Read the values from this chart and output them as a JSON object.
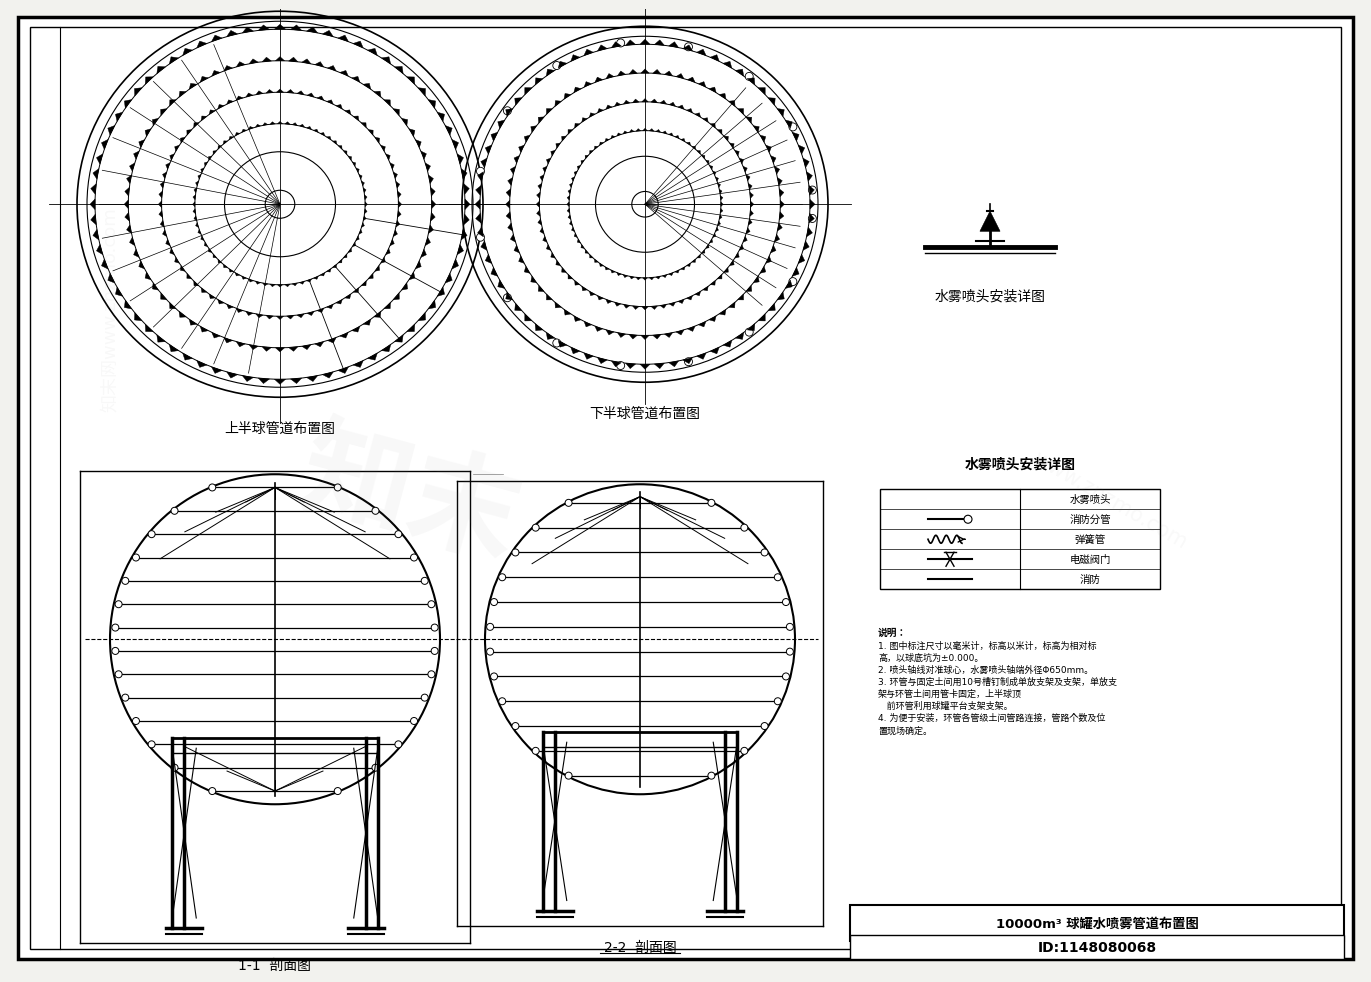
{
  "bg_color": "#f2f2ee",
  "white": "#ffffff",
  "black": "#000000",
  "label_upper": "上半球管道布置图",
  "label_lower": "下半球管道布置图",
  "label_section1": "1-1  剖面图",
  "label_section2": "2-2  剖面图",
  "label_nozzle": "水雾喷头安装详图",
  "legend_title": "水雾喷头安装详图",
  "legend_rows": [
    "水雾喷头",
    "消防分管",
    "弹簧管",
    "电磁阀门",
    "消防"
  ],
  "notes_title": "说明：",
  "notes": [
    "1. 图中标注尺寸以毫米计，标高以米计，标高为相对标",
    "高，以球底坑为±0.000。",
    "2. 喷头轴线对准球心，水雾喷头轴端外径Φ650mm。",
    "3. 环管与固定土间用10号槽钉制成单放支架及支架，单放支",
    "架与环管土间用管卡固定，上半球顶",
    "   前环管利用球罐平台支架支架。",
    "4. 为便于安装，环管各管级土间管路连接，管路个数及位",
    "置现场确定。"
  ],
  "title_text": "10000m³ 球罐水喷雾管道布置图",
  "id_text": "ID:1148080068"
}
